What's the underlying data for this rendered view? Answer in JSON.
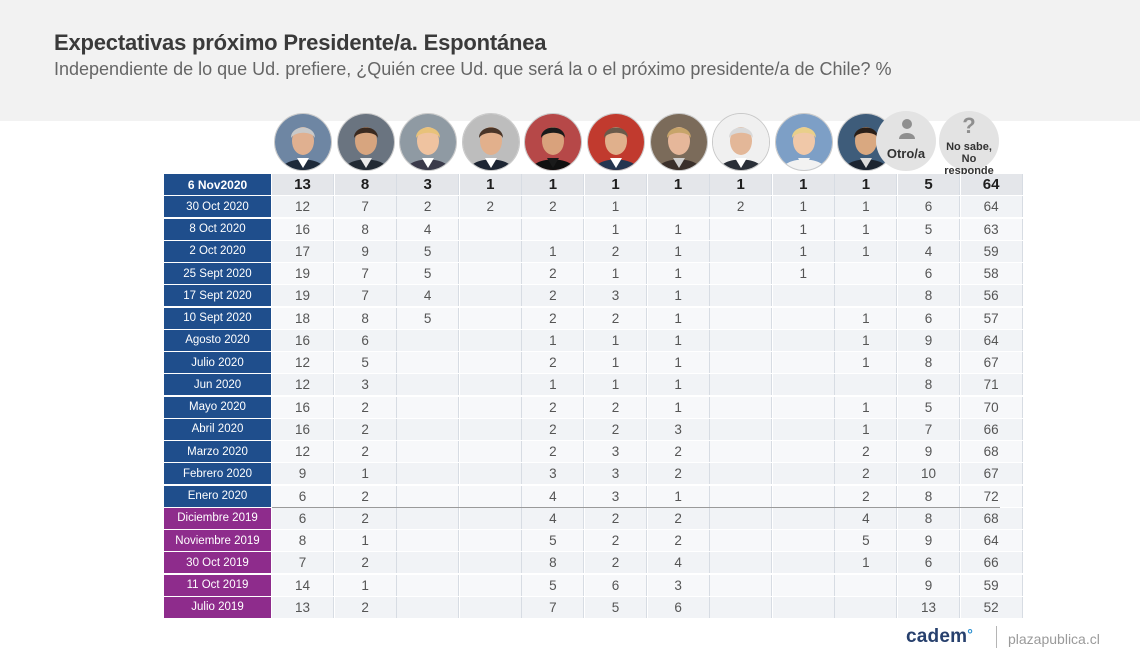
{
  "title": "Expectativas próximo Presidente/a. Espontánea",
  "subtitle": "Independiente de lo que Ud. prefiere, ¿Quién cree Ud. que será la o el próximo presidente/a de Chile? %",
  "columns": {
    "other_label": "Otro/a",
    "other_icon": "person-icon",
    "nosabe_mark": "?",
    "nosabe_label_1": "No sabe,",
    "nosabe_label_2": "No responde"
  },
  "colors": {
    "label_blue": "#1f4e8c",
    "label_purple": "#8e2c8c",
    "row_alt": "#f1f3f6",
    "grid": "#d7dce3"
  },
  "chart_data": {
    "type": "table",
    "columns": [
      "candidate-1",
      "candidate-2",
      "candidate-3",
      "candidate-4",
      "candidate-5",
      "candidate-6",
      "candidate-7",
      "candidate-8",
      "candidate-9",
      "candidate-10",
      "Otro/a",
      "No sabe, No responde"
    ],
    "rows": [
      {
        "label": "6 Nov2020",
        "group": "2020",
        "values": [
          "13",
          "8",
          "3",
          "1",
          "1",
          "1",
          "1",
          "1",
          "1",
          "1",
          "5",
          "64"
        ]
      },
      {
        "label": "30 Oct 2020",
        "group": "2020",
        "values": [
          "12",
          "7",
          "2",
          "2",
          "2",
          "1",
          "",
          "2",
          "1",
          "1",
          "6",
          "64"
        ]
      },
      {
        "label": "8 Oct 2020",
        "group": "2020",
        "values": [
          "16",
          "8",
          "4",
          "",
          "",
          "1",
          "1",
          "",
          "1",
          "1",
          "5",
          "63"
        ]
      },
      {
        "label": "2 Oct 2020",
        "group": "2020",
        "values": [
          "17",
          "9",
          "5",
          "",
          "1",
          "2",
          "1",
          "",
          "1",
          "1",
          "4",
          "59"
        ]
      },
      {
        "label": "25 Sept 2020",
        "group": "2020",
        "values": [
          "19",
          "7",
          "5",
          "",
          "2",
          "1",
          "1",
          "",
          "1",
          "",
          "6",
          "58"
        ]
      },
      {
        "label": "17 Sept 2020",
        "group": "2020",
        "values": [
          "19",
          "7",
          "4",
          "",
          "2",
          "3",
          "1",
          "",
          "",
          "",
          "8",
          "56"
        ]
      },
      {
        "label": "10 Sept 2020",
        "group": "2020",
        "values": [
          "18",
          "8",
          "5",
          "",
          "2",
          "2",
          "1",
          "",
          "",
          "1",
          "6",
          "57"
        ]
      },
      {
        "label": "Agosto 2020",
        "group": "2020",
        "values": [
          "16",
          "6",
          "",
          "",
          "1",
          "1",
          "1",
          "",
          "",
          "1",
          "9",
          "64"
        ]
      },
      {
        "label": "Julio 2020",
        "group": "2020",
        "values": [
          "12",
          "5",
          "",
          "",
          "2",
          "1",
          "1",
          "",
          "",
          "1",
          "8",
          "67"
        ]
      },
      {
        "label": "Jun 2020",
        "group": "2020",
        "values": [
          "12",
          "3",
          "",
          "",
          "1",
          "1",
          "1",
          "",
          "",
          "",
          "8",
          "71"
        ]
      },
      {
        "label": "Mayo 2020",
        "group": "2020",
        "values": [
          "16",
          "2",
          "",
          "",
          "2",
          "2",
          "1",
          "",
          "",
          "1",
          "5",
          "70"
        ]
      },
      {
        "label": "Abril 2020",
        "group": "2020",
        "values": [
          "16",
          "2",
          "",
          "",
          "2",
          "2",
          "3",
          "",
          "",
          "1",
          "7",
          "66"
        ]
      },
      {
        "label": "Marzo 2020",
        "group": "2020",
        "values": [
          "12",
          "2",
          "",
          "",
          "2",
          "3",
          "2",
          "",
          "",
          "2",
          "9",
          "68"
        ]
      },
      {
        "label": "Febrero 2020",
        "group": "2020",
        "values": [
          "9",
          "1",
          "",
          "",
          "3",
          "3",
          "2",
          "",
          "",
          "2",
          "10",
          "67"
        ]
      },
      {
        "label": "Enero 2020",
        "group": "2020",
        "values": [
          "6",
          "2",
          "",
          "",
          "4",
          "3",
          "1",
          "",
          "",
          "2",
          "8",
          "72"
        ]
      },
      {
        "label": "Diciembre 2019",
        "group": "2019",
        "values": [
          "6",
          "2",
          "",
          "",
          "4",
          "2",
          "2",
          "",
          "",
          "4",
          "8",
          "68"
        ]
      },
      {
        "label": "Noviembre 2019",
        "group": "2019",
        "values": [
          "8",
          "1",
          "",
          "",
          "5",
          "2",
          "2",
          "",
          "",
          "5",
          "9",
          "64"
        ]
      },
      {
        "label": "30 Oct 2019",
        "group": "2019",
        "values": [
          "7",
          "2",
          "",
          "",
          "8",
          "2",
          "4",
          "",
          "",
          "1",
          "6",
          "66"
        ]
      },
      {
        "label": "11 Oct 2019",
        "group": "2019",
        "values": [
          "14",
          "1",
          "",
          "",
          "5",
          "6",
          "3",
          "",
          "",
          "",
          "9",
          "59"
        ]
      },
      {
        "label": "Julio 2019",
        "group": "2019",
        "values": [
          "13",
          "2",
          "",
          "",
          "7",
          "5",
          "6",
          "",
          "",
          "",
          "13",
          "52"
        ]
      }
    ]
  },
  "footer": {
    "logo_text": "cadem",
    "logo_mark": "°",
    "site": "plazapublica.cl"
  }
}
